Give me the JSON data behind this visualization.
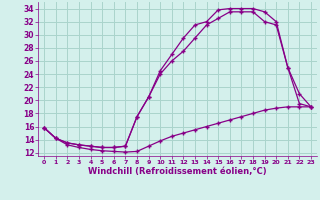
{
  "xlabel": "Windchill (Refroidissement éolien,°C)",
  "bg_color": "#d4f0ec",
  "grid_color": "#aad4cc",
  "line_color": "#880088",
  "xlim": [
    -0.5,
    23.5
  ],
  "ylim": [
    11.5,
    35
  ],
  "xticks": [
    0,
    1,
    2,
    3,
    4,
    5,
    6,
    7,
    8,
    9,
    10,
    11,
    12,
    13,
    14,
    15,
    16,
    17,
    18,
    19,
    20,
    21,
    22,
    23
  ],
  "yticks": [
    12,
    14,
    16,
    18,
    20,
    22,
    24,
    26,
    28,
    30,
    32,
    34
  ],
  "line1_x": [
    0,
    1,
    2,
    3,
    4,
    5,
    6,
    7,
    8,
    9,
    10,
    11,
    12,
    13,
    14,
    15,
    16,
    17,
    18,
    19,
    20,
    21,
    22,
    23
  ],
  "line1_y": [
    15.8,
    14.2,
    13.2,
    12.8,
    12.5,
    12.3,
    12.2,
    12.1,
    12.2,
    13.0,
    13.8,
    14.5,
    15.0,
    15.5,
    16.0,
    16.5,
    17.0,
    17.5,
    18.0,
    18.5,
    18.8,
    19.0,
    19.0,
    19.0
  ],
  "line2_x": [
    0,
    1,
    2,
    3,
    4,
    5,
    6,
    7,
    8,
    9,
    10,
    11,
    12,
    13,
    14,
    15,
    16,
    17,
    18,
    19,
    20,
    21,
    22,
    23
  ],
  "line2_y": [
    15.8,
    14.2,
    13.5,
    13.2,
    13.0,
    12.8,
    12.8,
    13.0,
    17.5,
    20.5,
    24.0,
    26.0,
    27.5,
    29.5,
    31.5,
    32.5,
    33.5,
    33.5,
    33.5,
    32.0,
    31.5,
    25.0,
    19.5,
    19.0
  ],
  "line3_x": [
    0,
    1,
    2,
    3,
    4,
    5,
    6,
    7,
    8,
    9,
    10,
    11,
    12,
    13,
    14,
    15,
    16,
    17,
    18,
    19,
    20,
    21,
    22,
    23
  ],
  "line3_y": [
    15.8,
    14.2,
    13.5,
    13.2,
    13.0,
    12.8,
    12.8,
    13.0,
    17.5,
    20.5,
    24.5,
    27.0,
    29.5,
    31.5,
    32.0,
    33.8,
    34.0,
    34.0,
    34.0,
    33.5,
    32.0,
    25.0,
    21.0,
    19.0
  ]
}
